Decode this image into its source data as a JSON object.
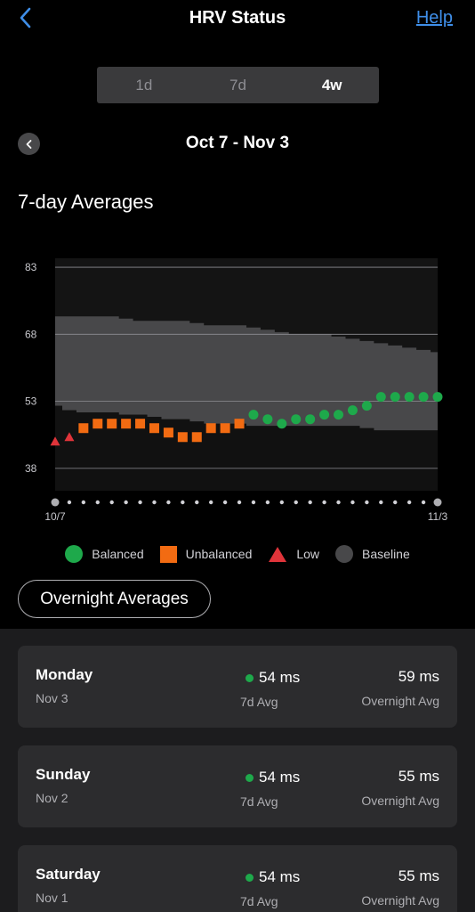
{
  "header": {
    "title": "HRV Status",
    "help_label": "Help"
  },
  "segments": [
    {
      "label": "1d",
      "active": false
    },
    {
      "label": "7d",
      "active": false
    },
    {
      "label": "4w",
      "active": true
    }
  ],
  "range": {
    "label": "Oct 7 - Nov 3"
  },
  "section_title": "7-day Averages",
  "colors": {
    "balanced": "#1ea94b",
    "unbalanced": "#f26b12",
    "low": "#e0343a",
    "baseline": "#48484a",
    "accent": "#3f8ee8"
  },
  "chart_data": {
    "type": "scatter",
    "x_start_label": "10/7",
    "x_end_label": "11/3",
    "y_ticks": [
      83,
      68,
      53,
      38
    ],
    "ylim": [
      33,
      85
    ],
    "series": [
      {
        "name": "Low",
        "marker": "triangle",
        "points": [
          [
            0,
            44
          ],
          [
            1,
            45
          ]
        ]
      },
      {
        "name": "Unbalanced",
        "marker": "square",
        "points": [
          [
            2,
            47
          ],
          [
            3,
            48
          ],
          [
            4,
            48
          ],
          [
            5,
            48
          ],
          [
            6,
            48
          ],
          [
            7,
            47
          ],
          [
            8,
            46
          ],
          [
            9,
            45
          ],
          [
            10,
            45
          ],
          [
            11,
            47
          ],
          [
            12,
            47
          ],
          [
            13,
            48
          ]
        ]
      },
      {
        "name": "Balanced",
        "marker": "circle",
        "points": [
          [
            14,
            50
          ],
          [
            15,
            49
          ],
          [
            16,
            48
          ],
          [
            17,
            49
          ],
          [
            18,
            49
          ],
          [
            19,
            50
          ],
          [
            20,
            50
          ],
          [
            21,
            51
          ],
          [
            22,
            52
          ],
          [
            23,
            54
          ],
          [
            24,
            54
          ],
          [
            25,
            54
          ],
          [
            26,
            54
          ],
          [
            27,
            54
          ]
        ]
      }
    ],
    "baseline_upper": [
      72,
      72,
      72,
      72,
      72,
      71.5,
      71,
      71,
      71,
      71,
      70.5,
      70,
      70,
      70,
      69.5,
      69,
      68.5,
      68,
      68,
      68,
      67.5,
      67,
      66.5,
      66,
      65.5,
      65,
      64.5,
      64
    ],
    "baseline_lower": [
      52,
      51,
      50.5,
      50.5,
      50.5,
      50,
      50,
      49.5,
      49,
      49,
      48.5,
      48,
      48,
      48,
      47.5,
      47.5,
      47.5,
      47.5,
      47.5,
      47.5,
      47.5,
      47.5,
      47,
      46.5,
      46.5,
      46.5,
      46.5,
      46.5
    ],
    "grid": true
  },
  "legend": [
    {
      "label": "Balanced",
      "symbol": "circle-green"
    },
    {
      "label": "Unbalanced",
      "symbol": "square-orange"
    },
    {
      "label": "Low",
      "symbol": "triangle-red"
    },
    {
      "label": "Baseline",
      "symbol": "circle-gray"
    }
  ],
  "overnight_button": "Overnight Averages",
  "days": [
    {
      "day": "Monday",
      "date": "Nov 3",
      "avg7": "54 ms",
      "avg7_label": "7d Avg",
      "overnight": "59 ms",
      "overnight_label": "Overnight Avg"
    },
    {
      "day": "Sunday",
      "date": "Nov 2",
      "avg7": "54 ms",
      "avg7_label": "7d Avg",
      "overnight": "55 ms",
      "overnight_label": "Overnight Avg"
    },
    {
      "day": "Saturday",
      "date": "Nov 1",
      "avg7": "54 ms",
      "avg7_label": "7d Avg",
      "overnight": "55 ms",
      "overnight_label": "Overnight Avg"
    }
  ]
}
